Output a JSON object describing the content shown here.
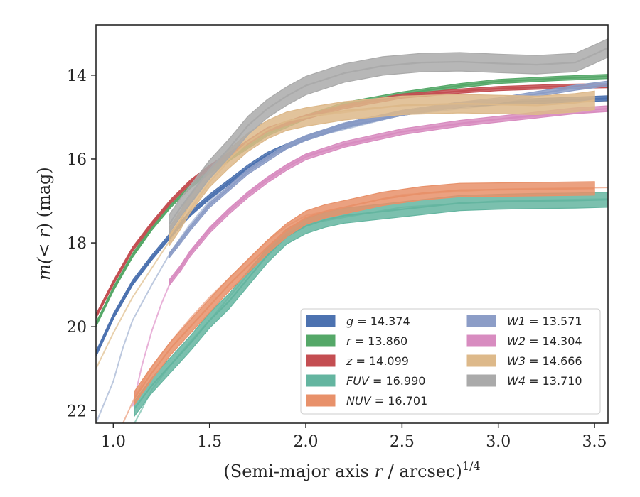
{
  "chart_data": {
    "type": "line",
    "xlabel": "(Semi-major axis r / arcsec)",
    "xlabel_parts": {
      "main": "(Semi-major axis ",
      "var": "r",
      "rest": " / arcsec)",
      "exponent": "1/4"
    },
    "ylabel": "m(<r) (mag)",
    "ylabel_parts": {
      "main": "m(",
      "var": "< r",
      "rest": ") (mag)"
    },
    "xlim": [
      0.91,
      3.57
    ],
    "ylim": [
      22.3,
      12.8
    ],
    "y_inverted": true,
    "xticks": [
      1.0,
      1.5,
      2.0,
      2.5,
      3.0,
      3.5
    ],
    "xtick_labels": [
      "1.0",
      "1.5",
      "2.0",
      "2.5",
      "3.0",
      "3.5"
    ],
    "yticks": [
      14,
      16,
      18,
      20,
      22
    ],
    "ytick_labels": [
      "14",
      "16",
      "18",
      "20",
      "22"
    ],
    "grid": false,
    "legend_position": "lower-right",
    "legend_columns": 2,
    "series": [
      {
        "name": "g = 14.374",
        "label_var": "g",
        "label_value": "14.374",
        "color": "#4c72b0",
        "x": [
          0.91,
          1.0,
          1.1,
          1.2,
          1.3,
          1.4,
          1.5,
          1.6,
          1.7,
          1.8,
          1.9,
          2.0,
          2.2,
          2.5,
          2.8,
          3.0,
          3.3,
          3.57
        ],
        "y": [
          20.65,
          19.75,
          18.95,
          18.35,
          17.8,
          17.3,
          16.9,
          16.55,
          16.2,
          15.9,
          15.7,
          15.5,
          15.2,
          14.9,
          14.7,
          14.65,
          14.6,
          14.55
        ],
        "band": 0.06
      },
      {
        "name": "r = 13.860",
        "label_var": "r",
        "label_value": "13.860",
        "color": "#55a868",
        "x": [
          0.91,
          1.0,
          1.1,
          1.2,
          1.3,
          1.4,
          1.5,
          1.6,
          1.7,
          1.8,
          1.9,
          2.0,
          2.2,
          2.5,
          2.8,
          3.0,
          3.3,
          3.57
        ],
        "y": [
          19.95,
          19.1,
          18.3,
          17.65,
          17.1,
          16.65,
          16.3,
          16.0,
          15.7,
          15.4,
          15.2,
          15.0,
          14.7,
          14.45,
          14.25,
          14.15,
          14.08,
          14.03
        ],
        "band": 0.05
      },
      {
        "name": "z = 14.099",
        "label_var": "z",
        "label_value": "14.099",
        "color": "#c44e52",
        "x": [
          0.91,
          1.0,
          1.1,
          1.2,
          1.3,
          1.4,
          1.5,
          1.6,
          1.7,
          1.8,
          1.9,
          2.0,
          2.2,
          2.5,
          2.8,
          3.0,
          3.3,
          3.57
        ],
        "y": [
          19.75,
          18.95,
          18.15,
          17.55,
          17.0,
          16.55,
          16.2,
          15.9,
          15.6,
          15.3,
          15.15,
          15.0,
          14.75,
          14.5,
          14.38,
          14.32,
          14.27,
          14.25
        ],
        "band": 0.05
      },
      {
        "name": "FUV = 16.990",
        "label_var": "FUV",
        "label_value": "16.990",
        "color": "#64b5a0",
        "x": [
          1.11,
          1.2,
          1.3,
          1.4,
          1.5,
          1.6,
          1.7,
          1.8,
          1.9,
          2.0,
          2.1,
          2.2,
          2.4,
          2.6,
          2.8,
          3.0,
          3.2,
          3.4,
          3.57
        ],
        "y": [
          21.95,
          21.4,
          20.9,
          20.4,
          19.85,
          19.4,
          18.85,
          18.3,
          17.85,
          17.6,
          17.45,
          17.35,
          17.25,
          17.15,
          17.05,
          17.02,
          17.0,
          16.99,
          16.97
        ],
        "band": 0.18
      },
      {
        "name": "NUV = 16.701",
        "label_var": "NUV",
        "label_value": "16.701",
        "color": "#e8916a",
        "x": [
          1.11,
          1.2,
          1.3,
          1.4,
          1.5,
          1.6,
          1.7,
          1.8,
          1.9,
          2.0,
          2.1,
          2.2,
          2.4,
          2.6,
          2.8,
          3.0,
          3.2,
          3.5
        ],
        "y": [
          21.7,
          21.1,
          20.5,
          20.0,
          19.5,
          19.0,
          18.55,
          18.1,
          17.7,
          17.4,
          17.25,
          17.15,
          16.95,
          16.82,
          16.74,
          16.73,
          16.72,
          16.7
        ],
        "band": 0.16
      },
      {
        "name": "W1 = 13.571",
        "label_var": "W1",
        "label_value": "13.571",
        "color": "#8c9dc7",
        "x": [
          1.29,
          1.35,
          1.4,
          1.5,
          1.6,
          1.7,
          1.8,
          1.9,
          2.0,
          2.2,
          2.5,
          2.8,
          3.0,
          3.2,
          3.4,
          3.57
        ],
        "y": [
          18.3,
          17.95,
          17.65,
          17.1,
          16.7,
          16.3,
          16.0,
          15.7,
          15.5,
          15.2,
          14.9,
          14.7,
          14.6,
          14.45,
          14.3,
          14.2
        ],
        "band": 0.06
      },
      {
        "name": "W2 = 14.304",
        "label_var": "W2",
        "label_value": "14.304",
        "color": "#d88cc0",
        "x": [
          1.29,
          1.35,
          1.4,
          1.5,
          1.6,
          1.7,
          1.8,
          1.9,
          2.0,
          2.2,
          2.5,
          2.8,
          3.0,
          3.2,
          3.4,
          3.57
        ],
        "y": [
          18.95,
          18.6,
          18.25,
          17.7,
          17.25,
          16.85,
          16.5,
          16.2,
          15.95,
          15.65,
          15.35,
          15.15,
          15.05,
          14.95,
          14.85,
          14.8
        ],
        "band": 0.07
      },
      {
        "name": "W3 = 14.666",
        "label_var": "W3",
        "label_value": "14.666",
        "color": "#ddb98a",
        "x": [
          1.29,
          1.35,
          1.4,
          1.5,
          1.6,
          1.7,
          1.8,
          1.9,
          2.0,
          2.2,
          2.5,
          2.8,
          3.0,
          3.2,
          3.4,
          3.5
        ],
        "y": [
          17.85,
          17.45,
          17.05,
          16.45,
          16.0,
          15.6,
          15.3,
          15.1,
          15.0,
          14.85,
          14.72,
          14.68,
          14.7,
          14.72,
          14.66,
          14.6
        ],
        "band": 0.22
      },
      {
        "name": "W4 = 13.710",
        "label_var": "W4",
        "label_value": "13.710",
        "color": "#aaaaaa",
        "x": [
          1.29,
          1.35,
          1.4,
          1.5,
          1.6,
          1.7,
          1.8,
          1.9,
          2.0,
          2.2,
          2.4,
          2.6,
          2.8,
          3.0,
          3.2,
          3.4,
          3.5,
          3.57
        ],
        "y": [
          17.55,
          17.15,
          16.85,
          16.25,
          15.75,
          15.2,
          14.8,
          14.5,
          14.25,
          13.95,
          13.78,
          13.7,
          13.68,
          13.72,
          13.75,
          13.7,
          13.5,
          13.35
        ],
        "band": 0.22
      }
    ],
    "thin_traces": [
      {
        "series": "g",
        "color": "#4c72b0",
        "x": [
          0.91,
          1.0,
          1.1,
          1.2,
          1.3,
          1.4,
          1.5,
          1.6,
          1.7,
          1.8,
          1.9,
          2.0,
          2.5,
          3.0,
          3.57
        ],
        "y": [
          20.7,
          19.8,
          19.0,
          18.4,
          17.85,
          17.35,
          16.95,
          16.6,
          16.25,
          15.95,
          15.72,
          15.52,
          14.92,
          14.67,
          14.57
        ]
      },
      {
        "series": "W1",
        "color": "#b6c3dc",
        "x": [
          0.91,
          1.0,
          1.05,
          1.1,
          1.2,
          1.3,
          1.4,
          1.5,
          1.6,
          1.7,
          1.8,
          1.9,
          2.0,
          2.5,
          3.0,
          3.57
        ],
        "y": [
          22.3,
          21.3,
          20.5,
          19.85,
          19.0,
          18.2,
          17.55,
          17.0,
          16.6,
          16.25,
          15.95,
          15.72,
          15.52,
          14.95,
          14.7,
          14.55
        ]
      },
      {
        "series": "W2",
        "color": "#e6a8d4",
        "x": [
          1.1,
          1.15,
          1.2,
          1.25,
          1.3,
          1.4,
          1.5,
          1.6,
          1.7,
          1.8,
          1.9,
          2.0,
          2.5,
          3.0,
          3.57
        ],
        "y": [
          21.9,
          20.9,
          20.1,
          19.45,
          18.9,
          18.2,
          17.65,
          17.2,
          16.8,
          16.45,
          16.15,
          15.9,
          15.35,
          15.05,
          14.85
        ]
      },
      {
        "series": "W3",
        "color": "#e6cba3",
        "x": [
          0.91,
          1.0,
          1.1,
          1.2,
          1.3,
          1.4,
          1.5,
          1.6,
          1.7,
          1.8,
          1.9,
          2.0,
          2.5,
          3.0,
          3.57
        ],
        "y": [
          21.0,
          20.15,
          19.3,
          18.6,
          17.9,
          17.2,
          16.55,
          16.05,
          15.65,
          15.35,
          15.12,
          15.0,
          14.72,
          14.69,
          14.62
        ]
      },
      {
        "series": "FUV",
        "color": "#8fcbbb",
        "x": [
          1.11,
          1.15,
          1.2,
          1.3,
          1.4,
          1.5,
          1.6,
          1.7,
          1.8,
          1.9,
          2.0,
          2.5,
          3.0,
          3.57
        ],
        "y": [
          22.3,
          21.95,
          21.5,
          20.9,
          20.35,
          19.85,
          19.3,
          18.75,
          18.2,
          17.8,
          17.55,
          17.15,
          17.0,
          16.95
        ]
      },
      {
        "series": "NUV",
        "color": "#f0b198",
        "x": [
          1.05,
          1.1,
          1.15,
          1.2,
          1.3,
          1.4,
          1.5,
          1.6,
          1.7,
          1.8,
          1.9,
          2.0,
          2.5,
          3.0,
          3.57
        ],
        "y": [
          22.3,
          21.8,
          21.35,
          20.95,
          20.35,
          19.8,
          19.3,
          18.85,
          18.4,
          17.95,
          17.6,
          17.35,
          16.85,
          16.72,
          16.68
        ]
      }
    ]
  }
}
